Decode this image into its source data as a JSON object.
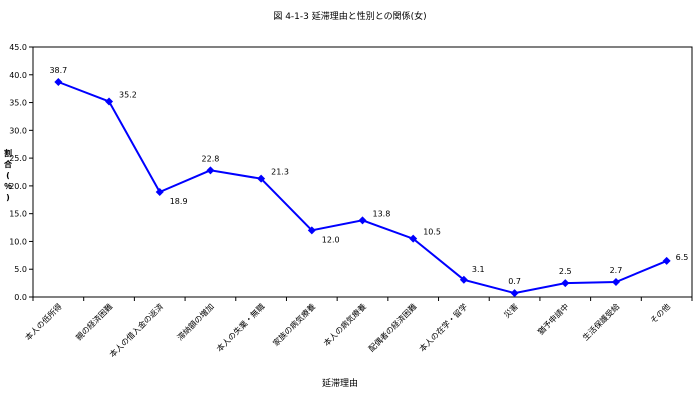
{
  "chart_data": {
    "type": "line",
    "title": "図 4-1-3 延滞理由と性別との関係(女)",
    "xlabel": "延滞理由",
    "ylabel": [
      "割",
      "合",
      "(",
      "％",
      ")"
    ],
    "categories": [
      "本人の低所得",
      "親の経済困難",
      "本人の借入金の返済",
      "滞納額の増加",
      "本人の失業・無職",
      "家族の病気療養",
      "本人の病気療養",
      "配偶者の経済困難",
      "本人の在学・留学",
      "災害",
      "猶予申請中",
      "生活保護受給",
      "その他"
    ],
    "series": [
      {
        "values": [
          38.7,
          35.2,
          18.9,
          22.8,
          21.3,
          12.0,
          13.8,
          10.5,
          3.1,
          0.7,
          2.5,
          2.7,
          6.5
        ]
      }
    ],
    "value_labels": [
      "38.7",
      "35.2",
      "18.9",
      "22.8",
      "21.3",
      "12.0",
      "13.8",
      "10.5",
      "3.1",
      "0.7",
      "2.5",
      "2.7",
      "6.5"
    ],
    "ylim": [
      0,
      45
    ],
    "yticks": [
      "0.0",
      "5.0",
      "10.0",
      "15.0",
      "20.0",
      "25.0",
      "30.0",
      "35.0",
      "40.0",
      "45.0"
    ],
    "grid": false,
    "legend": "none",
    "line_color": "#0000ff",
    "marker": "diamond"
  }
}
